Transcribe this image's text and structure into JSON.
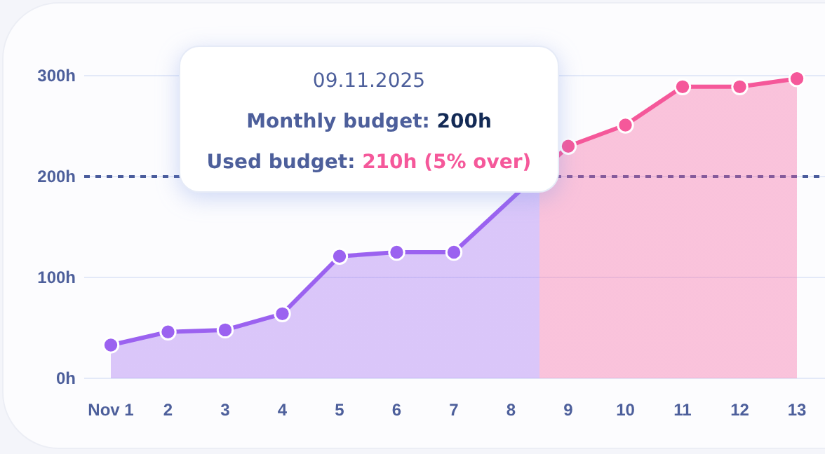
{
  "chart_data": {
    "type": "area",
    "categories": [
      "Nov 1",
      "2",
      "3",
      "4",
      "5",
      "6",
      "7",
      "8",
      "9",
      "10",
      "11",
      "12",
      "13"
    ],
    "series": [
      {
        "color": "#9b62f0",
        "colors": [
          null,
          null,
          null,
          null,
          null,
          null,
          null,
          null,
          "#f5589a",
          "#f5589a",
          "#f5589a",
          "#f5589a",
          "#f5589a"
        ],
        "values": [
          33,
          46,
          48,
          64,
          121,
          125,
          125,
          null,
          230,
          251,
          289,
          289,
          297
        ]
      }
    ],
    "ylim": [
      0,
      300
    ],
    "yticks": [
      {
        "value": 0,
        "label": "0h"
      },
      {
        "value": 100,
        "label": "100h"
      },
      {
        "value": 200,
        "label": "200h"
      },
      {
        "value": 300,
        "label": "300h"
      }
    ],
    "grid": "y",
    "marker": "circle",
    "line_style": "solid",
    "ref_lines": [
      {
        "axis": "y",
        "value": 200,
        "color": "#4a5c9c",
        "line_style": "dashed"
      }
    ],
    "annotations": [
      "09.11.2025",
      "Monthly budget: 200h",
      "Used budget: 210h (5% over)"
    ]
  }
}
